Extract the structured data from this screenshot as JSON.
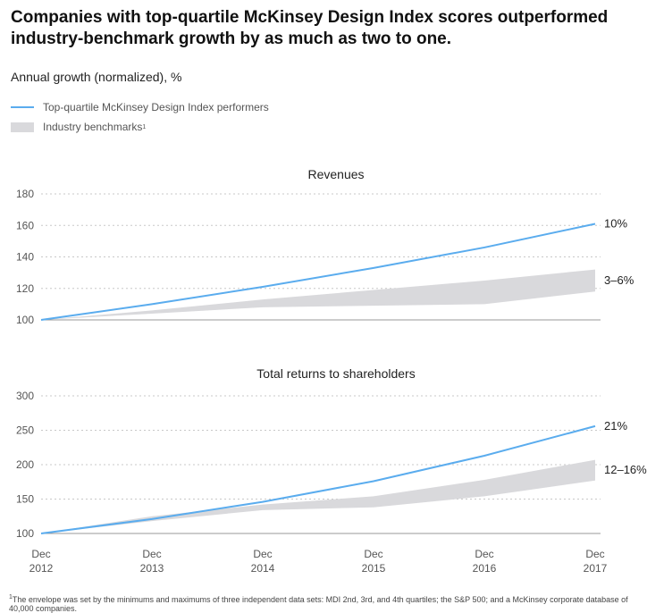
{
  "header": {
    "title": "Companies with top-quartile McKinsey Design Index scores outperformed industry-benchmark growth by as much as two to one.",
    "subtitle": "Annual growth (normalized), %"
  },
  "legend": {
    "items": [
      {
        "label": "Top-quartile McKinsey Design Index performers",
        "color": "#5aacee",
        "kind": "line"
      },
      {
        "label": "Industry benchmarks",
        "sup": "1",
        "color": "#d9d9dc",
        "kind": "band"
      }
    ]
  },
  "footnote": {
    "sup": "1",
    "text": "The envelope was set by the minimums and maximums of three independent data sets: MDI 2nd, 3rd, and 4th quartiles; the S&P 500; and a McKinsey corporate database of 40,000 companies."
  },
  "colors": {
    "line": "#5aacee",
    "band": "#d9d9dc",
    "grid": "#c8c8c8",
    "axis": "#555555"
  },
  "chart_data": [
    {
      "type": "line",
      "title": "Revenues",
      "x": [
        "Dec 2012",
        "Dec 2013",
        "Dec 2014",
        "Dec 2015",
        "Dec 2016",
        "Dec 2017"
      ],
      "ylim": [
        100,
        180
      ],
      "yticks": [
        100,
        120,
        140,
        160,
        180
      ],
      "series": [
        {
          "name": "Top-quartile McKinsey Design Index performers",
          "values": [
            100,
            110,
            121,
            133,
            146,
            161
          ],
          "end_label": "10%"
        }
      ],
      "band": {
        "name": "Industry benchmarks",
        "upper": [
          100,
          106,
          113,
          119,
          125,
          132
        ],
        "lower": [
          100,
          104,
          108,
          109,
          110,
          118
        ],
        "end_label": "3–6%"
      },
      "grid": "horizontal-dashed",
      "legend": "top-left"
    },
    {
      "type": "line",
      "title": "Total returns to shareholders",
      "x": [
        "Dec 2012",
        "Dec 2013",
        "Dec 2014",
        "Dec 2015",
        "Dec 2016",
        "Dec 2017"
      ],
      "ylim": [
        100,
        300
      ],
      "yticks": [
        100,
        150,
        200,
        250,
        300
      ],
      "series": [
        {
          "name": "Top-quartile McKinsey Design Index performers",
          "values": [
            100,
            121,
            146,
            176,
            213,
            256
          ],
          "end_label": "21%"
        }
      ],
      "band": {
        "name": "Industry benchmarks",
        "upper": [
          100,
          125,
          142,
          154,
          178,
          207
        ],
        "lower": [
          100,
          118,
          134,
          138,
          154,
          177
        ],
        "end_label": "12–16%"
      },
      "grid": "horizontal-dashed",
      "legend": "top-left"
    }
  ]
}
